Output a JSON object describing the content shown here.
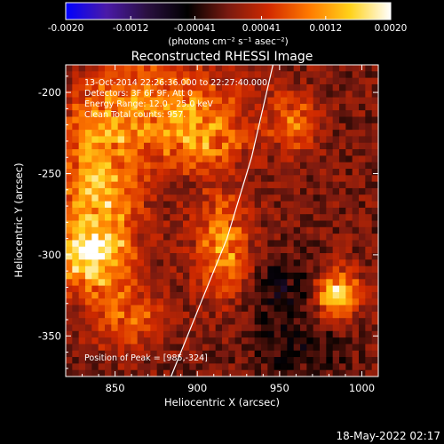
{
  "chart_data": {
    "type": "heatmap",
    "title": "Reconstructed RHESSI Image",
    "xlabel": "Heliocentric X (arcsec)",
    "ylabel": "Heliocentric Y (arcsec)",
    "xlim": [
      820,
      1010
    ],
    "ylim": [
      -375,
      -183
    ],
    "xticks": [
      850,
      900,
      950,
      1000
    ],
    "yticks": [
      -200,
      -250,
      -300,
      -350
    ],
    "colorbar": {
      "label": "(photons cm⁻² s⁻¹ asec⁻²)",
      "range": [
        -0.002,
        0.002
      ],
      "ticks": [
        {
          "value": -0.002,
          "label": "-0.0020"
        },
        {
          "value": -0.0012,
          "label": "-0.0012"
        },
        {
          "value": -0.00041,
          "label": "-0.00041"
        },
        {
          "value": 0.00041,
          "label": "0.00041"
        },
        {
          "value": 0.0012,
          "label": "0.0012"
        },
        {
          "value": 0.002,
          "label": "0.0020"
        }
      ],
      "colors": [
        "#0000ff",
        "#4a1aa8",
        "#2a1040",
        "#000000",
        "#7a1a10",
        "#d22a00",
        "#ff7a00",
        "#ffd21a",
        "#ffffff"
      ]
    },
    "annotations": [
      "13-Oct-2014 22:26:36.000 to 22:27:40.000",
      "Detectors: 3F 6F 9F, Att 0",
      "Energy Range: 12.0 - 25.0 keV",
      "Clean   Total counts: 957.",
      "Position of Peak = [985,-324]"
    ],
    "limb": [
      [
        884,
        -375
      ],
      [
        902,
        -330
      ],
      [
        918,
        -290
      ],
      [
        933,
        -240
      ],
      [
        946,
        -183
      ]
    ],
    "sources": [
      {
        "x": 840,
        "y": -265,
        "sx": 18,
        "sy": 40,
        "amp": 0.0013
      },
      {
        "x": 835,
        "y": -300,
        "sx": 14,
        "sy": 14,
        "amp": 0.0011
      },
      {
        "x": 880,
        "y": -210,
        "sx": 32,
        "sy": 22,
        "amp": 0.001
      },
      {
        "x": 905,
        "y": -230,
        "sx": 16,
        "sy": 12,
        "amp": 0.0007
      },
      {
        "x": 915,
        "y": -295,
        "sx": 12,
        "sy": 22,
        "amp": 0.0011
      },
      {
        "x": 958,
        "y": -218,
        "sx": 10,
        "sy": 12,
        "amp": 0.0009
      },
      {
        "x": 985,
        "y": -324,
        "sx": 9,
        "sy": 10,
        "amp": 0.0016
      },
      {
        "x": 860,
        "y": -340,
        "sx": 16,
        "sy": 12,
        "amp": 0.0007
      },
      {
        "x": 952,
        "y": -320,
        "sx": 14,
        "sy": 14,
        "amp": -0.0005
      },
      {
        "x": 960,
        "y": -360,
        "sx": 20,
        "sy": 14,
        "amp": -0.0004
      }
    ]
  },
  "footer": {
    "timestamp": "18-May-2022 02:17"
  }
}
